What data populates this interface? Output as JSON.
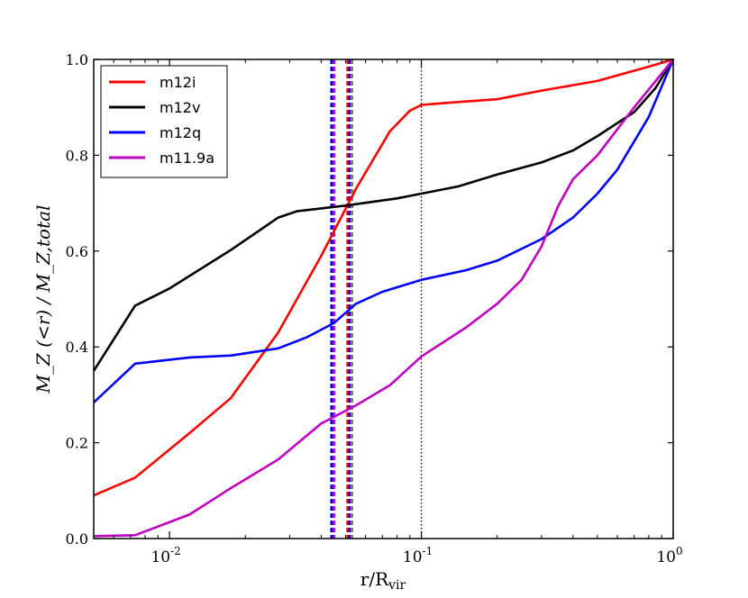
{
  "chart_data": {
    "type": "line",
    "xscale": "log",
    "xlabel": "r/R",
    "xlabel_sub": "vir",
    "ylabel": "M_Z (<r) / M_Z,total",
    "xlim": [
      0.005,
      1.0
    ],
    "ylim": [
      0.0,
      1.0
    ],
    "xticks": [
      {
        "value": 0.01,
        "base": "10",
        "exp": "-2"
      },
      {
        "value": 0.1,
        "base": "10",
        "exp": "-1"
      },
      {
        "value": 1.0,
        "base": "10",
        "exp": "0"
      }
    ],
    "yticks": [
      "0.0",
      "0.2",
      "0.4",
      "0.6",
      "0.8",
      "1.0"
    ],
    "legend_position": "top-left",
    "series": [
      {
        "name": "m12i",
        "color": "#ff0000",
        "x": [
          0.005,
          0.0073,
          0.012,
          0.0175,
          0.027,
          0.04,
          0.055,
          0.075,
          0.09,
          0.1,
          0.13,
          0.2,
          0.3,
          0.5,
          0.8,
          1.0
        ],
        "y": [
          0.09,
          0.127,
          0.22,
          0.293,
          0.43,
          0.59,
          0.73,
          0.85,
          0.893,
          0.905,
          0.91,
          0.917,
          0.935,
          0.955,
          0.985,
          1.0
        ]
      },
      {
        "name": "m12v",
        "color": "#000000",
        "x": [
          0.005,
          0.0073,
          0.01,
          0.0175,
          0.027,
          0.032,
          0.05,
          0.08,
          0.1,
          0.14,
          0.2,
          0.3,
          0.4,
          0.5,
          0.7,
          0.85,
          1.0
        ],
        "y": [
          0.35,
          0.486,
          0.522,
          0.602,
          0.67,
          0.683,
          0.695,
          0.71,
          0.72,
          0.735,
          0.76,
          0.785,
          0.81,
          0.84,
          0.89,
          0.94,
          1.0
        ]
      },
      {
        "name": "m12q",
        "color": "#0000ff",
        "x": [
          0.005,
          0.0073,
          0.012,
          0.0175,
          0.027,
          0.035,
          0.045,
          0.055,
          0.07,
          0.1,
          0.15,
          0.2,
          0.3,
          0.4,
          0.5,
          0.6,
          0.8,
          1.0
        ],
        "y": [
          0.284,
          0.365,
          0.378,
          0.382,
          0.397,
          0.42,
          0.45,
          0.49,
          0.515,
          0.54,
          0.56,
          0.58,
          0.625,
          0.67,
          0.72,
          0.77,
          0.88,
          1.0
        ]
      },
      {
        "name": "m11.9a",
        "color": "#bf00bf",
        "x": [
          0.005,
          0.0073,
          0.012,
          0.0175,
          0.027,
          0.04,
          0.055,
          0.075,
          0.1,
          0.15,
          0.2,
          0.25,
          0.3,
          0.35,
          0.4,
          0.5,
          0.7,
          1.0
        ],
        "y": [
          0.005,
          0.007,
          0.05,
          0.105,
          0.165,
          0.24,
          0.278,
          0.32,
          0.38,
          0.44,
          0.49,
          0.54,
          0.61,
          0.695,
          0.75,
          0.8,
          0.9,
          1.0
        ]
      }
    ],
    "vlines": [
      {
        "x": 0.1,
        "color": "#000000",
        "style": "dotted"
      },
      {
        "x": 0.044,
        "color": "#0000ff",
        "style": "dashed"
      },
      {
        "x": 0.045,
        "color": "#bf00bf",
        "style": "dashed"
      },
      {
        "x": 0.051,
        "color": "#ff0000",
        "style": "dashed"
      },
      {
        "x": 0.052,
        "color": "#0000ff",
        "style": "dashed"
      },
      {
        "x": 0.053,
        "color": "#808080",
        "style": "dashed"
      }
    ]
  }
}
